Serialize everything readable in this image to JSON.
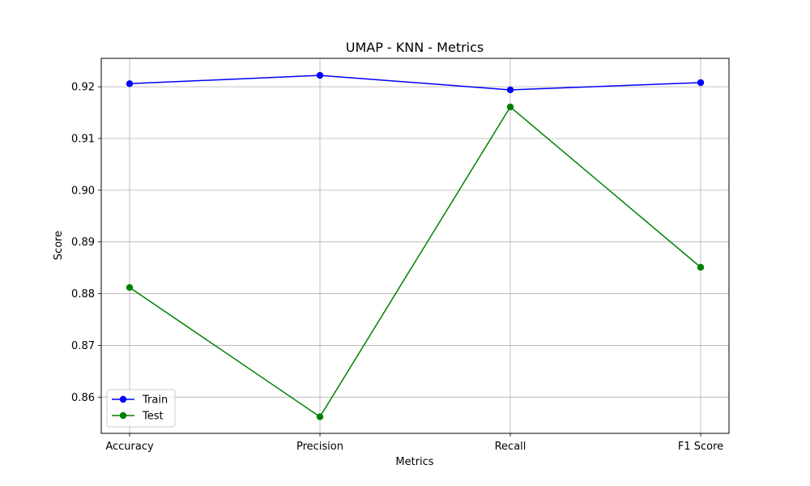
{
  "chart_data": {
    "type": "line",
    "title": "UMAP - KNN - Metrics",
    "xlabel": "Metrics",
    "ylabel": "Score",
    "categories": [
      "Accuracy",
      "Precision",
      "Recall",
      "F1 Score"
    ],
    "series": [
      {
        "name": "Train",
        "values": [
          0.9206,
          0.9222,
          0.9194,
          0.9208
        ],
        "color": "#0000ff",
        "marker": "circle"
      },
      {
        "name": "Test",
        "values": [
          0.8812,
          0.8562,
          0.9161,
          0.8851
        ],
        "color": "#008000",
        "marker": "circle"
      }
    ],
    "ylim": [
      0.853,
      0.9255
    ],
    "yticks": [
      "0.86",
      "0.87",
      "0.88",
      "0.89",
      "0.90",
      "0.91",
      "0.92"
    ],
    "grid": true,
    "legend_position": "lower-left"
  }
}
